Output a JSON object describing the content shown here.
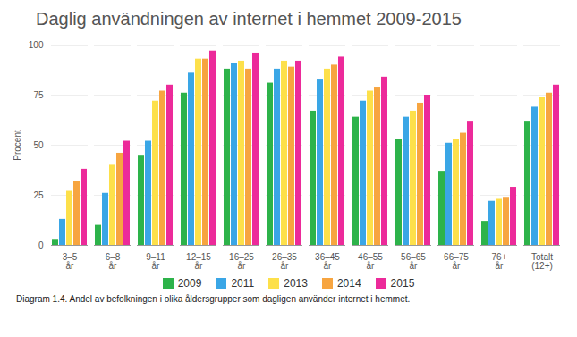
{
  "chart_data": {
    "type": "bar",
    "title": "Daglig användningen av internet i hemmet 2009-2015",
    "caption": "Diagram 1.4. Andel av befolkningen i olika åldersgrupper som dagligen använder internet i hemmet.",
    "y_label": "Procent",
    "categories": [
      "3–5 år",
      "6–8 år",
      "9–11 år",
      "12–15 år",
      "16–25 år",
      "26–35 år",
      "36–45 år",
      "46–55 år",
      "56–65 år",
      "66–75 år",
      "76+ år",
      "Totalt (12+)"
    ],
    "series": [
      {
        "name": "2009",
        "color": "#2db34a",
        "values": [
          3,
          10,
          45,
          76,
          88,
          81,
          67,
          64,
          53,
          37,
          12,
          62
        ]
      },
      {
        "name": "2011",
        "color": "#3aa6e6",
        "values": [
          13,
          26,
          52,
          86,
          91,
          88,
          83,
          72,
          64,
          51,
          22,
          69
        ]
      },
      {
        "name": "2013",
        "color": "#fde04a",
        "values": [
          27,
          40,
          72,
          93,
          92,
          92,
          88,
          77,
          67,
          53,
          23,
          74
        ]
      },
      {
        "name": "2014",
        "color": "#f7a540",
        "values": [
          32,
          46,
          77,
          93,
          88,
          89,
          90,
          79,
          71,
          56,
          24,
          76
        ]
      },
      {
        "name": "2015",
        "color": "#ec2a9a",
        "values": [
          38,
          52,
          80,
          97,
          96,
          92,
          94,
          84,
          75,
          62,
          29,
          80
        ]
      }
    ],
    "ylim": [
      0,
      100
    ],
    "yticks": [
      0,
      25,
      50,
      75,
      100
    ],
    "grid": true,
    "legend": "bottom"
  }
}
